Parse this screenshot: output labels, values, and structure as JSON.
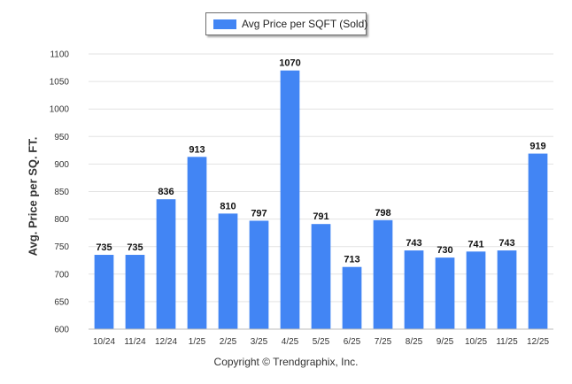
{
  "chart_data": {
    "type": "bar",
    "categories": [
      "10/24",
      "11/24",
      "12/24",
      "1/25",
      "2/25",
      "3/25",
      "4/25",
      "5/25",
      "6/25",
      "7/25",
      "8/25",
      "9/25",
      "10/25",
      "11/25",
      "12/25"
    ],
    "series": [
      {
        "name": "Avg Price per SQFT (Sold)",
        "values": [
          735,
          735,
          836,
          913,
          810,
          797,
          1070,
          791,
          713,
          798,
          743,
          730,
          741,
          743,
          919
        ],
        "color": "#4285f4"
      }
    ],
    "ylabel": "Avg. Price per SQ. FT.",
    "xlabel": "",
    "ylim": [
      600,
      1100
    ],
    "yticks": [
      600,
      650,
      700,
      750,
      800,
      850,
      900,
      950,
      1000,
      1050,
      1100
    ],
    "grid": true,
    "legend_position": "top-center",
    "data_labels": true
  },
  "footer": {
    "credit": "Copyright © Trendgraphix, Inc."
  }
}
